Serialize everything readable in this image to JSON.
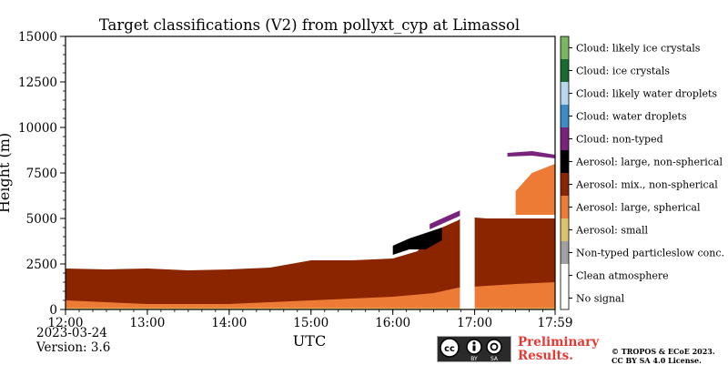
{
  "chart_data": {
    "type": "heatmap",
    "title": "Target classifications (V2) from pollyxt_cyp at Limassol",
    "xlabel": "UTC",
    "ylabel": "Height (m)",
    "x_ticks": [
      "12:00",
      "13:00",
      "14:00",
      "15:00",
      "16:00",
      "17:00",
      "17:59"
    ],
    "x_range_hours": [
      12.0,
      17.983
    ],
    "y_ticks": [
      0,
      2500,
      5000,
      7500,
      10000,
      12500,
      15000
    ],
    "y_range": [
      0,
      15000
    ],
    "legend_placement": "right colorbar",
    "classes": [
      {
        "label": "No signal",
        "color": "#ffffff"
      },
      {
        "label": "Clean atmosphere",
        "color": "#ffffff"
      },
      {
        "label": "Non-typed particleslow conc.",
        "color": "#a0a0a0"
      },
      {
        "label": "Aerosol: small",
        "color": "#dcc36e"
      },
      {
        "label": "Aerosol: large, spherical",
        "color": "#ed7a35"
      },
      {
        "label": "Aerosol: mix., non-spherical",
        "color": "#8b2500"
      },
      {
        "label": "Aerosol: large, non-spherical",
        "color": "#000000"
      },
      {
        "label": "Cloud: non-typed",
        "color": "#7a237e"
      },
      {
        "label": "Cloud: water droplets",
        "color": "#3d8bc8"
      },
      {
        "label": "Cloud: likely water droplets",
        "color": "#b9d6ef"
      },
      {
        "label": "Cloud: ice crystals",
        "color": "#1a6b33"
      },
      {
        "label": "Cloud: likely ice crystals",
        "color": "#7bb661"
      }
    ],
    "regions": [
      {
        "class": "Aerosol: mix., non-spherical",
        "t": [
          12.0,
          12.5,
          13.0,
          13.5,
          14.0,
          14.5,
          15.0,
          15.5,
          16.0,
          16.3,
          16.5,
          16.8,
          16.85,
          17.15,
          17.5,
          17.983
        ],
        "top": [
          2250,
          2200,
          2250,
          2150,
          2200,
          2300,
          2700,
          2700,
          2800,
          3200,
          4300,
          4900,
          5100,
          5000,
          5000,
          5000
        ],
        "bottom": [
          0,
          0,
          0,
          0,
          0,
          0,
          0,
          0,
          0,
          0,
          0,
          0,
          0,
          0,
          0,
          0
        ]
      },
      {
        "class": "Aerosol: large, spherical",
        "t": [
          12.0,
          13.0,
          14.0,
          15.0,
          16.0,
          16.5,
          16.8,
          17.15,
          17.5,
          17.983
        ],
        "top": [
          500,
          300,
          300,
          500,
          700,
          900,
          1200,
          1300,
          1400,
          1500
        ],
        "bottom": [
          0,
          0,
          0,
          0,
          0,
          0,
          0,
          0,
          0,
          0
        ]
      },
      {
        "class": "Aerosol: small",
        "t": [
          12.0,
          17.983
        ],
        "top": [
          80,
          80
        ],
        "bottom": [
          0,
          0
        ]
      },
      {
        "class": "Cloud: non-typed",
        "t": [
          16.45,
          16.7,
          16.85
        ],
        "top": [
          4700,
          5200,
          5500
        ],
        "bottom": [
          4400,
          4900,
          5200
        ]
      },
      {
        "class": "Cloud: non-typed",
        "t": [
          17.4,
          17.7,
          17.983
        ],
        "top": [
          8600,
          8700,
          8500
        ],
        "bottom": [
          8400,
          8450,
          8300
        ]
      },
      {
        "class": "Aerosol: large, non-spherical",
        "t": [
          16.0,
          16.2,
          16.4,
          16.6
        ],
        "top": [
          3500,
          3900,
          4200,
          4500
        ],
        "bottom": [
          3000,
          3300,
          3300,
          3800
        ]
      },
      {
        "class": "Aerosol: large, spherical",
        "t": [
          17.5,
          17.7,
          17.983
        ],
        "top": [
          6500,
          7500,
          8000
        ],
        "bottom": [
          5200,
          5200,
          5200
        ]
      }
    ],
    "gaps": [
      {
        "t": [
          16.82,
          17.0
        ],
        "class": "No signal"
      }
    ]
  },
  "footer": {
    "date": "2023-03-24",
    "version": "Version: 3.6",
    "preliminary_line1": "Preliminary",
    "preliminary_line2": "Results.",
    "copyright_line1": "© TROPOS & ECoE 2023.",
    "copyright_line2": "CC BY SA 4.0 License.",
    "license_icon": "cc-by-sa-icon",
    "license_text_by": "BY",
    "license_text_sa": "SA"
  }
}
